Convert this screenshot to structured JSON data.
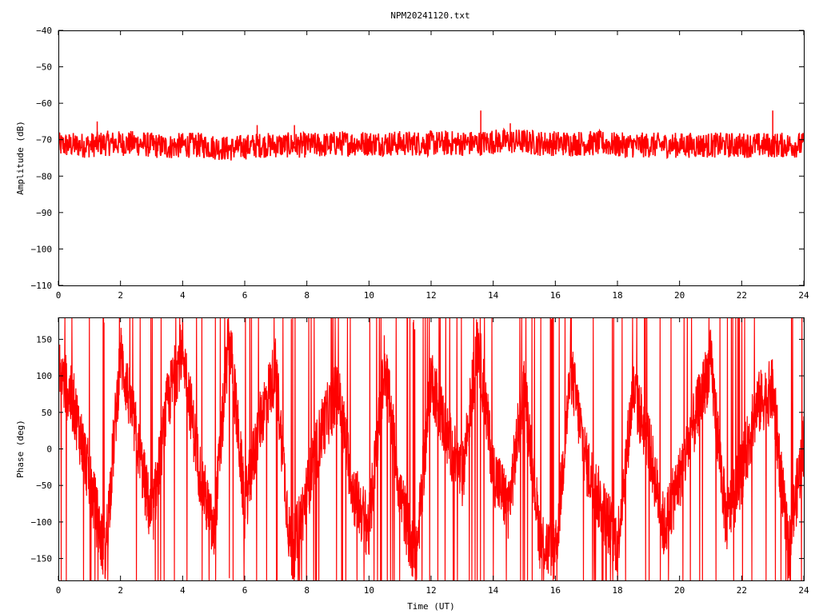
{
  "title": "NPM20241120.txt",
  "colors": {
    "trace": "#ff0000",
    "axis": "#000000",
    "background": "#ffffff"
  },
  "chart_data": [
    {
      "type": "line",
      "title": "NPM20241120.txt",
      "xlabel": "",
      "ylabel": "Amplitude (dB)",
      "xlim": [
        0,
        24
      ],
      "ylim": [
        -110,
        -40
      ],
      "xticks": [
        0,
        2,
        4,
        6,
        8,
        10,
        12,
        14,
        16,
        18,
        20,
        22,
        24
      ],
      "yticks": [
        -40,
        -50,
        -60,
        -70,
        -80,
        -90,
        -100,
        -110
      ],
      "grid": false,
      "series": [
        {
          "color": "#ff0000",
          "x": [
            0,
            0.5,
            1,
            1.5,
            2,
            2.5,
            3,
            3.5,
            4,
            4.5,
            5,
            5.5,
            6,
            6.5,
            7,
            7.5,
            8,
            8.5,
            9,
            9.5,
            10,
            10.5,
            11,
            11.5,
            12,
            12.5,
            13,
            13.5,
            14,
            14.5,
            15,
            15.5,
            16,
            16.5,
            17,
            17.5,
            18,
            18.5,
            19,
            19.5,
            20,
            20.5,
            21,
            21.5,
            22,
            22.5,
            23,
            23.5,
            24
          ],
          "center": [
            -71.5,
            -71.5,
            -71.5,
            -71,
            -71,
            -71,
            -71.5,
            -72,
            -71.5,
            -71.5,
            -72,
            -72.5,
            -72,
            -71.5,
            -71.5,
            -71.5,
            -71.5,
            -71.5,
            -71,
            -71,
            -71,
            -71,
            -71,
            -71,
            -71,
            -71,
            -71,
            -71,
            -70.5,
            -70.5,
            -70.5,
            -71,
            -71,
            -71,
            -71,
            -71,
            -71.5,
            -71.5,
            -71.5,
            -71.5,
            -71.5,
            -71.5,
            -71.5,
            -71.5,
            -71.5,
            -71.5,
            -71.5,
            -71.5,
            -71.5
          ],
          "spread": 3.5,
          "spikes": [
            [
              1.25,
              -65
            ],
            [
              6.4,
              -66
            ],
            [
              7.6,
              -66
            ],
            [
              13.6,
              -62
            ],
            [
              14.55,
              -65.5
            ],
            [
              23.0,
              -62
            ]
          ]
        }
      ]
    },
    {
      "type": "line",
      "title": "",
      "xlabel": "Time (UT)",
      "ylabel": "Phase (deg)",
      "xlim": [
        0,
        24
      ],
      "ylim": [
        -180,
        180
      ],
      "xticks": [
        0,
        2,
        4,
        6,
        8,
        10,
        12,
        14,
        16,
        18,
        20,
        22,
        24
      ],
      "yticks": [
        150,
        100,
        50,
        0,
        -50,
        -100,
        -150
      ],
      "grid": false,
      "series": [
        {
          "color": "#ff0000",
          "x": [
            0,
            0.5,
            1,
            1.5,
            2,
            2.5,
            3,
            3.5,
            4,
            4.5,
            5,
            5.5,
            6,
            6.5,
            7,
            7.5,
            8,
            8.5,
            9,
            9.5,
            10,
            10.5,
            11,
            11.5,
            12,
            12.5,
            13,
            13.5,
            14,
            14.5,
            15,
            15.5,
            16,
            16.5,
            17,
            17.5,
            18,
            18.5,
            19,
            19.5,
            20,
            20.5,
            21,
            21.5,
            22,
            22.5,
            23,
            23.5,
            24
          ],
          "values": [
            110,
            60,
            -40,
            -150,
            130,
            20,
            -100,
            60,
            140,
            -20,
            -120,
            160,
            -80,
            40,
            110,
            -150,
            -60,
            30,
            80,
            -60,
            -110,
            120,
            -60,
            -160,
            100,
            20,
            -40,
            150,
            -30,
            -80,
            90,
            -120,
            -150,
            110,
            -20,
            -80,
            -130,
            80,
            10,
            -110,
            -40,
            40,
            120,
            -100,
            -30,
            60,
            80,
            -140,
            10
          ]
        }
      ]
    }
  ]
}
